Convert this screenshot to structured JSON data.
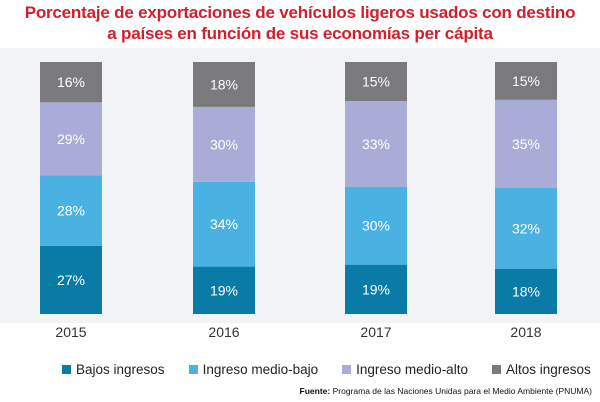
{
  "chart_data": {
    "type": "bar",
    "stacked": true,
    "title_lines": [
      "Porcentaje de exportaciones de vehículos ligeros usados con destino",
      "a países en función de sus economías per cápita"
    ],
    "categories": [
      "2015",
      "2016",
      "2017",
      "2018"
    ],
    "series": [
      {
        "name": "Bajos ingresos",
        "color": "#0a7ba6",
        "values": [
          27,
          19,
          19,
          18
        ],
        "labels": [
          "27%",
          "19%",
          "19%",
          "18%"
        ]
      },
      {
        "name": "Ingreso medio-bajo",
        "color": "#4ab2e3",
        "values": [
          28,
          34,
          30,
          32
        ],
        "labels": [
          "28%",
          "34%",
          "30%",
          "32%"
        ]
      },
      {
        "name": "Ingreso medio-alto",
        "color": "#a9acd6",
        "values": [
          29,
          30,
          33,
          35
        ],
        "labels": [
          "29%",
          "30%",
          "33%",
          "35%"
        ]
      },
      {
        "name": "Altos ingresos",
        "color": "#7a7a7c",
        "values": [
          16,
          18,
          15,
          15
        ],
        "labels": [
          "16%",
          "18%",
          "15%",
          "15%"
        ]
      }
    ],
    "legend_position": "bottom",
    "grid": false
  },
  "source": {
    "label": "Fuente:",
    "text": "Programa de las Naciones Unidas para el Medio Ambiente (PNUMA)"
  }
}
